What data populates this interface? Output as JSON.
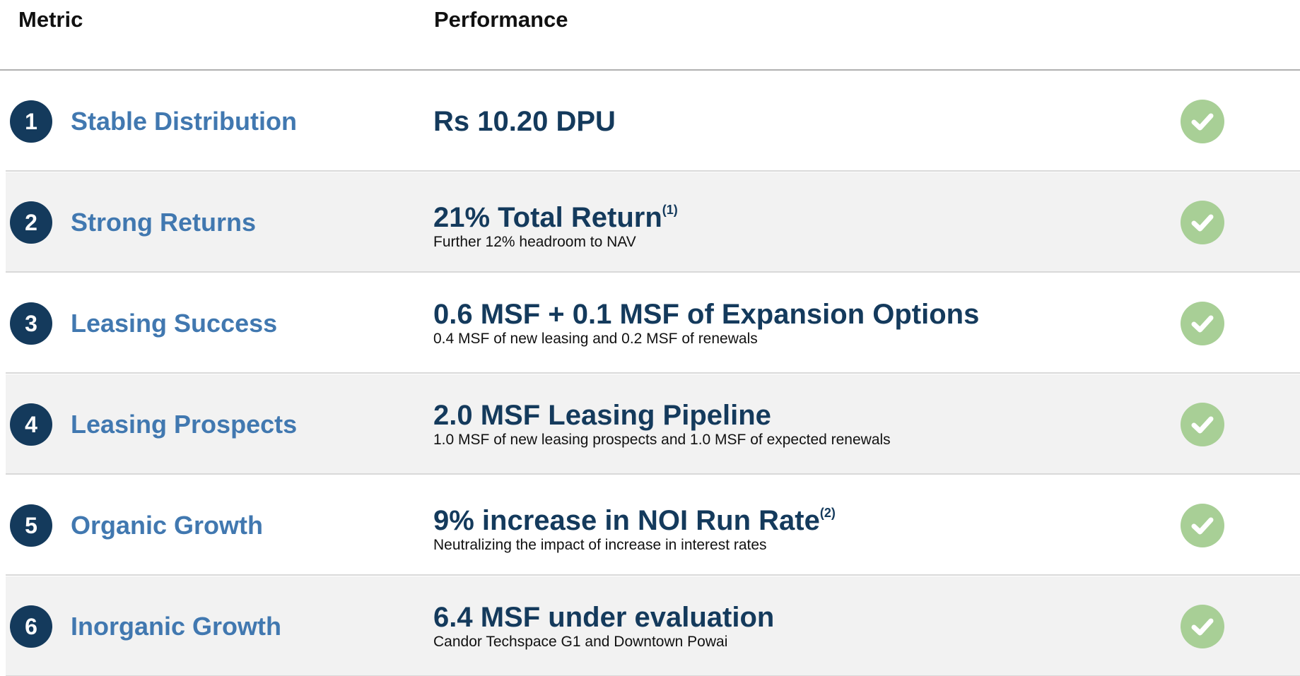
{
  "header": {
    "metric": "Metric",
    "performance": "Performance"
  },
  "rows": [
    {
      "number": "1",
      "metric": "Stable Distribution",
      "performance": "Rs 10.20 DPU"
    },
    {
      "number": "2",
      "metric": "Strong Returns",
      "performance": "21% Total Return",
      "note": "(1)",
      "detail": "Further 12% headroom to NAV"
    },
    {
      "number": "3",
      "metric": "Leasing Success",
      "performance": "0.6 MSF + 0.1 MSF of Expansion Options",
      "detail": "0.4 MSF of new leasing and 0.2 MSF of renewals"
    },
    {
      "number": "4",
      "metric": "Leasing Prospects",
      "performance": "2.0 MSF Leasing Pipeline",
      "detail": "1.0 MSF of new leasing prospects and 1.0 MSF of expected renewals"
    },
    {
      "number": "5",
      "metric": "Organic Growth",
      "performance": "9% increase in NOI Run Rate",
      "note": "(2)",
      "detail": "Neutralizing the impact of increase in interest rates"
    },
    {
      "number": "6",
      "metric": "Inorganic Growth",
      "performance": "6.4 MSF under evaluation",
      "detail": "Candor Techspace G1 and Downtown Powai"
    }
  ]
}
